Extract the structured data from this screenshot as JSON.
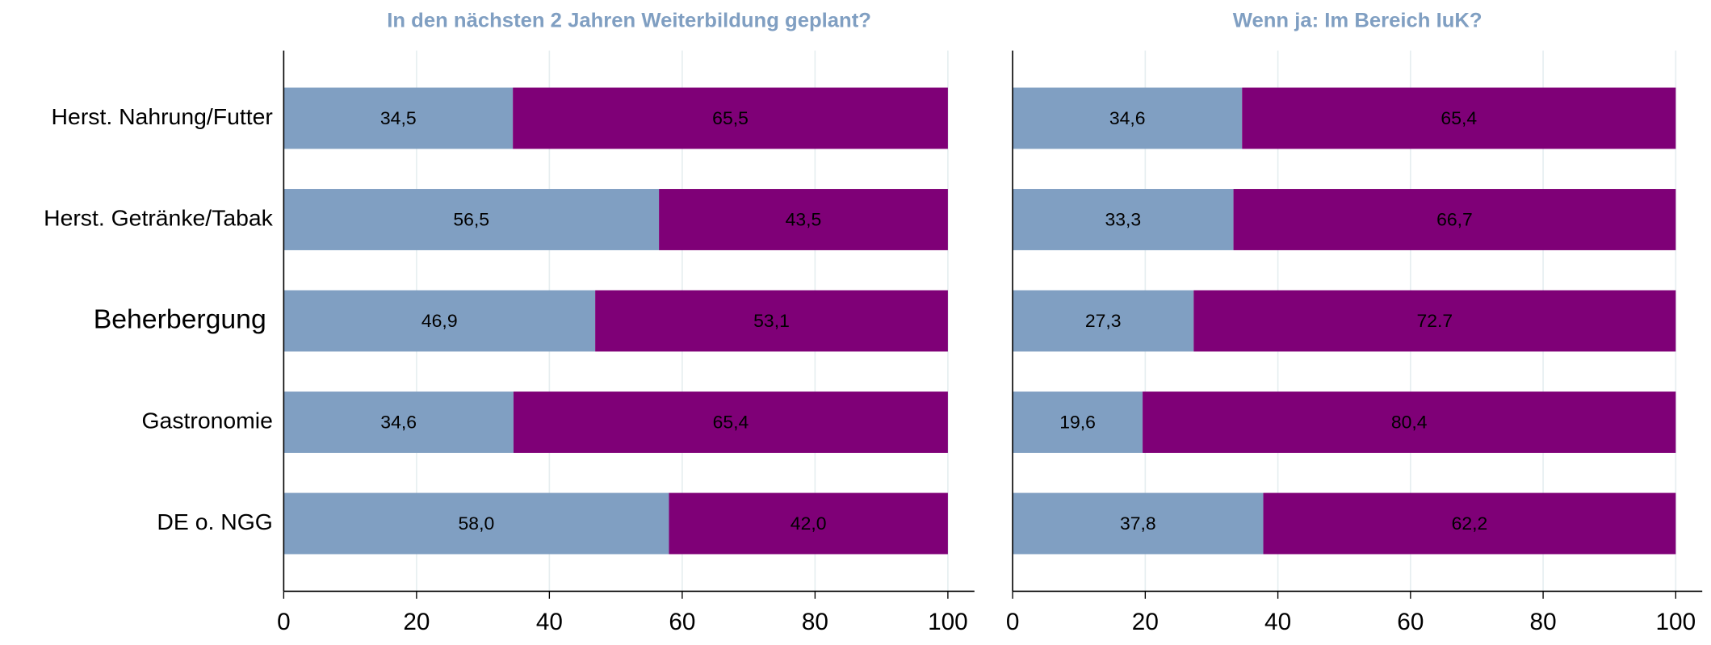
{
  "chart_data": [
    {
      "type": "stacked-bar",
      "title": "In den nächsten 2 Jahren Weiterbildung geplant?",
      "categories": [
        "Herst. Nahrung/Futter",
        "Herst. Getränke/Tabak",
        "Beherbergung",
        "Gastronomie",
        "DE o. NGG"
      ],
      "series": [
        {
          "color": "#809fc2",
          "values": [
            34.5,
            56.5,
            46.9,
            34.6,
            58.0
          ],
          "value_labels": [
            "34,5",
            "56,5",
            "46,9",
            "34,6",
            "58,0"
          ]
        },
        {
          "color": "#7f0077",
          "values": [
            65.5,
            43.5,
            53.1,
            65.4,
            42.0
          ],
          "value_labels": [
            "65,5",
            "43,5",
            "53,1",
            "65,4",
            "42,0"
          ]
        }
      ],
      "xlim": [
        0,
        104
      ],
      "xticks": [
        0,
        20,
        40,
        60,
        80,
        100
      ],
      "grid": true
    },
    {
      "type": "stacked-bar",
      "title": "Wenn ja: Im Bereich IuK?",
      "series": [
        {
          "color": "#809fc2",
          "values": [
            34.6,
            33.3,
            27.3,
            19.6,
            37.8
          ],
          "value_labels": [
            "34,6",
            "33,3",
            "27,3",
            "19,6",
            "37,8"
          ]
        },
        {
          "color": "#7f0077",
          "values": [
            65.4,
            66.7,
            72.7,
            80.4,
            62.2
          ],
          "value_labels": [
            "65,4",
            "66,7",
            "72.7",
            "80,4",
            "62,2"
          ]
        }
      ],
      "xlim": [
        0,
        104
      ],
      "xticks": [
        0,
        20,
        40,
        60,
        80,
        100
      ],
      "grid": true
    }
  ]
}
